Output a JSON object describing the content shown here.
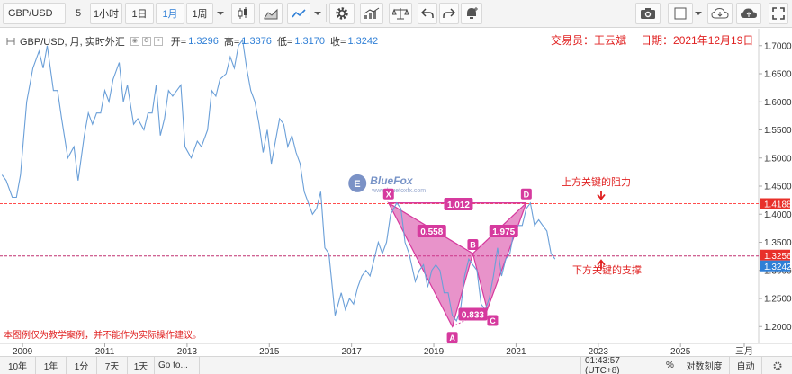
{
  "toolbar": {
    "symbol": "GBP/USD",
    "interval_input": "5",
    "intervals": [
      "1小时",
      "1日",
      "1月",
      "1周"
    ],
    "active_interval": "1月"
  },
  "legend": {
    "title": "GBP/USD, 月, 实时外汇",
    "open_label": "开=",
    "open": "1.3296",
    "high_label": "高=",
    "high": "1.3376",
    "low_label": "低=",
    "low": "1.3170",
    "close_label": "收=",
    "close": "1.3242"
  },
  "annotations": {
    "trader": "交易员：王云斌",
    "date": "日期：2021年12月19日",
    "resistance": "上方关键的阻力",
    "support": "下方关键的支撑",
    "disclaimer": "本图例仅为教学案例，并不能作为实际操作建议。",
    "watermark": "BlueFox",
    "watermark_url": "www.bluefoxfx.com"
  },
  "chart_data": {
    "type": "line",
    "title": "GBP/USD, 月, 实时外汇",
    "ylim": [
      1.17,
      1.73
    ],
    "y_ticks": [
      1.2,
      1.25,
      1.3,
      1.35,
      1.4,
      1.45,
      1.5,
      1.55,
      1.6,
      1.65,
      1.7
    ],
    "x_ticks": [
      "2009",
      "2011",
      "2013",
      "2015",
      "2017",
      "2019",
      "2021",
      "2023",
      "2025",
      "三月"
    ],
    "price_labels": [
      {
        "value": "1.4188",
        "color": "#e8302a"
      },
      {
        "value": "1.3256",
        "color": "#e8302a"
      },
      {
        "value": "1.3242",
        "color": "#2f7fd6"
      }
    ],
    "series": [
      {
        "values": [
          [
            2008.5,
            1.47
          ],
          [
            2008.6,
            1.46
          ],
          [
            2008.75,
            1.43
          ],
          [
            2008.85,
            1.43
          ],
          [
            2008.95,
            1.47
          ],
          [
            2009.1,
            1.6
          ],
          [
            2009.25,
            1.66
          ],
          [
            2009.4,
            1.69
          ],
          [
            2009.5,
            1.66
          ],
          [
            2009.6,
            1.7
          ],
          [
            2009.75,
            1.62
          ],
          [
            2009.85,
            1.62
          ],
          [
            2009.95,
            1.57
          ],
          [
            2010.1,
            1.5
          ],
          [
            2010.25,
            1.52
          ],
          [
            2010.35,
            1.46
          ],
          [
            2010.5,
            1.54
          ],
          [
            2010.6,
            1.58
          ],
          [
            2010.7,
            1.56
          ],
          [
            2010.8,
            1.58
          ],
          [
            2010.9,
            1.58
          ],
          [
            2011.0,
            1.62
          ],
          [
            2011.1,
            1.6
          ],
          [
            2011.2,
            1.64
          ],
          [
            2011.35,
            1.67
          ],
          [
            2011.45,
            1.6
          ],
          [
            2011.55,
            1.63
          ],
          [
            2011.7,
            1.56
          ],
          [
            2011.8,
            1.57
          ],
          [
            2011.95,
            1.55
          ],
          [
            2012.05,
            1.58
          ],
          [
            2012.15,
            1.58
          ],
          [
            2012.25,
            1.63
          ],
          [
            2012.35,
            1.54
          ],
          [
            2012.45,
            1.57
          ],
          [
            2012.55,
            1.62
          ],
          [
            2012.65,
            1.61
          ],
          [
            2012.75,
            1.62
          ],
          [
            2012.85,
            1.63
          ],
          [
            2012.95,
            1.52
          ],
          [
            2013.1,
            1.5
          ],
          [
            2013.25,
            1.53
          ],
          [
            2013.35,
            1.52
          ],
          [
            2013.5,
            1.55
          ],
          [
            2013.6,
            1.62
          ],
          [
            2013.7,
            1.61
          ],
          [
            2013.8,
            1.64
          ],
          [
            2013.95,
            1.65
          ],
          [
            2014.05,
            1.68
          ],
          [
            2014.15,
            1.66
          ],
          [
            2014.25,
            1.7
          ],
          [
            2014.35,
            1.71
          ],
          [
            2014.45,
            1.66
          ],
          [
            2014.55,
            1.62
          ],
          [
            2014.65,
            1.6
          ],
          [
            2014.75,
            1.56
          ],
          [
            2014.85,
            1.51
          ],
          [
            2014.95,
            1.55
          ],
          [
            2015.05,
            1.49
          ],
          [
            2015.15,
            1.53
          ],
          [
            2015.25,
            1.57
          ],
          [
            2015.35,
            1.56
          ],
          [
            2015.45,
            1.52
          ],
          [
            2015.55,
            1.54
          ],
          [
            2015.65,
            1.51
          ],
          [
            2015.75,
            1.49
          ],
          [
            2015.85,
            1.44
          ],
          [
            2015.95,
            1.42
          ],
          [
            2016.05,
            1.4
          ],
          [
            2016.15,
            1.41
          ],
          [
            2016.25,
            1.44
          ],
          [
            2016.35,
            1.34
          ],
          [
            2016.45,
            1.33
          ],
          [
            2016.6,
            1.22
          ],
          [
            2016.75,
            1.26
          ],
          [
            2016.85,
            1.23
          ],
          [
            2016.95,
            1.25
          ],
          [
            2017.05,
            1.24
          ],
          [
            2017.15,
            1.27
          ],
          [
            2017.25,
            1.29
          ],
          [
            2017.35,
            1.3
          ],
          [
            2017.45,
            1.29
          ],
          [
            2017.55,
            1.32
          ],
          [
            2017.65,
            1.35
          ],
          [
            2017.75,
            1.33
          ],
          [
            2017.85,
            1.35
          ],
          [
            2017.95,
            1.4
          ],
          [
            2018.1,
            1.42
          ],
          [
            2018.2,
            1.41
          ],
          [
            2018.3,
            1.35
          ],
          [
            2018.4,
            1.33
          ],
          [
            2018.55,
            1.28
          ],
          [
            2018.65,
            1.3
          ],
          [
            2018.75,
            1.31
          ],
          [
            2018.85,
            1.27
          ],
          [
            2018.95,
            1.3
          ],
          [
            2019.05,
            1.31
          ],
          [
            2019.15,
            1.3
          ],
          [
            2019.25,
            1.26
          ],
          [
            2019.35,
            1.26
          ],
          [
            2019.45,
            1.22
          ],
          [
            2019.55,
            1.21
          ],
          [
            2019.65,
            1.23
          ],
          [
            2019.75,
            1.29
          ],
          [
            2019.85,
            1.32
          ],
          [
            2019.95,
            1.31
          ],
          [
            2020.05,
            1.3
          ],
          [
            2020.15,
            1.24
          ],
          [
            2020.25,
            1.23
          ],
          [
            2020.35,
            1.25
          ],
          [
            2020.45,
            1.29
          ],
          [
            2020.55,
            1.34
          ],
          [
            2020.65,
            1.29
          ],
          [
            2020.75,
            1.32
          ],
          [
            2020.85,
            1.33
          ],
          [
            2020.95,
            1.37
          ],
          [
            2021.05,
            1.38
          ],
          [
            2021.15,
            1.38
          ],
          [
            2021.25,
            1.41
          ],
          [
            2021.35,
            1.42
          ],
          [
            2021.45,
            1.38
          ],
          [
            2021.55,
            1.39
          ],
          [
            2021.65,
            1.38
          ],
          [
            2021.75,
            1.37
          ],
          [
            2021.85,
            1.33
          ],
          [
            2021.95,
            1.32
          ]
        ]
      }
    ],
    "levels": [
      {
        "name": "resistance",
        "value": 1.4188,
        "color": "#ff4d4d"
      },
      {
        "name": "support",
        "value": 1.3256,
        "color": "#c03070"
      }
    ],
    "harmonic": {
      "points": [
        {
          "label": "X",
          "x": 2017.9,
          "y": 1.42
        },
        {
          "label": "A",
          "x": 2019.45,
          "y": 1.2
        },
        {
          "label": "B",
          "x": 2019.95,
          "y": 1.33
        },
        {
          "label": "C",
          "x": 2020.3,
          "y": 1.23
        },
        {
          "label": "D",
          "x": 2021.25,
          "y": 1.42
        }
      ],
      "ratios": [
        {
          "text": "1.012",
          "x": 2019.6,
          "y": 1.418
        },
        {
          "text": "0.558",
          "x": 2018.95,
          "y": 1.37
        },
        {
          "text": "1.975",
          "x": 2020.7,
          "y": 1.37
        },
        {
          "text": "0.833",
          "x": 2019.95,
          "y": 1.222
        }
      ],
      "color": "#d63a9e"
    }
  },
  "bottombar": {
    "ranges": [
      "10年",
      "1年",
      "1分",
      "7天",
      "1天"
    ],
    "goto": "Go to...",
    "clock": "01:43:57 (UTC+8)",
    "percent": "%",
    "log": "对数刻度",
    "auto": "自动"
  }
}
